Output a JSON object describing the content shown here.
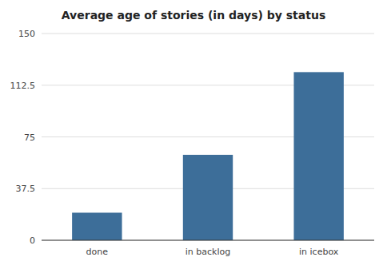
{
  "chart_data": {
    "type": "bar",
    "title": "Average age of stories (in days) by status",
    "categories": [
      "done",
      "in backlog",
      "in icebox"
    ],
    "values": [
      20,
      62,
      122
    ],
    "color": "#3d6e99",
    "ylim": [
      0,
      150
    ],
    "yticks": [
      0,
      37.5,
      75,
      112.5,
      150
    ],
    "grid": true
  }
}
